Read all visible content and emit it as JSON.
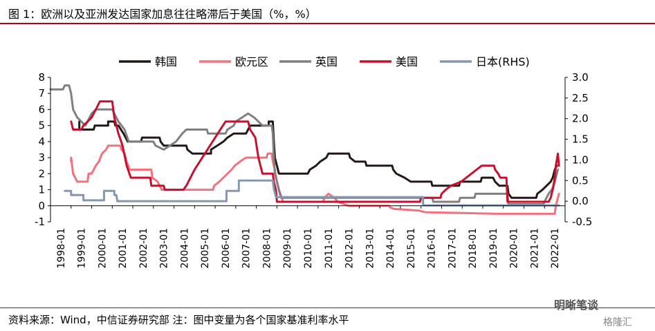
{
  "figure": {
    "title": "图 1：欧洲以及亚洲发达国家加息往往略滞后于美国（%，%）",
    "source": "资料来源：Wind，中信证券研究部    注：图中变量为各个国家基准利率水平",
    "watermark": "明晰笔谈",
    "watermark2": "格隆汇"
  },
  "chart_data": {
    "type": "line",
    "x_tick_labels": [
      "1998-01",
      "1999-01",
      "2000-01",
      "2001-01",
      "2002-01",
      "2003-01",
      "2004-01",
      "2005-01",
      "2006-01",
      "2007-01",
      "2008-01",
      "2009-01",
      "2010-01",
      "2011-01",
      "2012-01",
      "2013-01",
      "2014-01",
      "2015-01",
      "2016-01",
      "2017-01",
      "2018-01",
      "2019-01",
      "2020-01",
      "2021-01",
      "2022-01"
    ],
    "x_range": [
      1998.0,
      2023.0
    ],
    "y_left": {
      "range": [
        -1,
        8
      ],
      "ticks": [
        "-1",
        "0",
        "1",
        "2",
        "3",
        "4",
        "5",
        "6",
        "7",
        "8"
      ]
    },
    "y_right": {
      "range": [
        -0.5,
        3.0
      ],
      "ticks": [
        "-0.5",
        "0.0",
        "0.5",
        "1.0",
        "1.5",
        "2.0",
        "2.5",
        "3.0"
      ]
    },
    "legend_position": "top",
    "series": [
      {
        "name": "韩国",
        "color": "#231815",
        "axis": "left",
        "points": [
          [
            1999.4,
            5.25
          ],
          [
            1999.4,
            4.75
          ],
          [
            2000.1,
            4.75
          ],
          [
            2000.15,
            5.0
          ],
          [
            2000.8,
            5.0
          ],
          [
            2000.8,
            5.25
          ],
          [
            2001.1,
            5.25
          ],
          [
            2001.15,
            5.0
          ],
          [
            2001.3,
            5.0
          ],
          [
            2001.55,
            4.5
          ],
          [
            2001.75,
            4.0
          ],
          [
            2002.4,
            4.0
          ],
          [
            2002.45,
            4.25
          ],
          [
            2003.3,
            4.25
          ],
          [
            2003.35,
            4.0
          ],
          [
            2003.5,
            3.75
          ],
          [
            2004.6,
            3.75
          ],
          [
            2004.65,
            3.5
          ],
          [
            2004.9,
            3.25
          ],
          [
            2005.8,
            3.25
          ],
          [
            2005.8,
            3.5
          ],
          [
            2006.1,
            3.75
          ],
          [
            2006.4,
            4.0
          ],
          [
            2006.6,
            4.25
          ],
          [
            2006.9,
            4.5
          ],
          [
            2007.5,
            4.5
          ],
          [
            2007.6,
            4.75
          ],
          [
            2007.7,
            5.0
          ],
          [
            2008.6,
            5.0
          ],
          [
            2008.6,
            5.25
          ],
          [
            2008.8,
            5.25
          ],
          [
            2008.85,
            4.0
          ],
          [
            2008.9,
            3.0
          ],
          [
            2009.0,
            2.5
          ],
          [
            2009.1,
            2.0
          ],
          [
            2010.5,
            2.0
          ],
          [
            2010.6,
            2.25
          ],
          [
            2010.9,
            2.5
          ],
          [
            2011.1,
            2.75
          ],
          [
            2011.4,
            3.0
          ],
          [
            2011.5,
            3.25
          ],
          [
            2012.5,
            3.25
          ],
          [
            2012.55,
            3.0
          ],
          [
            2012.8,
            2.75
          ],
          [
            2013.3,
            2.75
          ],
          [
            2013.35,
            2.5
          ],
          [
            2014.6,
            2.5
          ],
          [
            2014.65,
            2.25
          ],
          [
            2014.8,
            2.0
          ],
          [
            2015.2,
            1.75
          ],
          [
            2015.5,
            1.5
          ],
          [
            2016.5,
            1.5
          ],
          [
            2016.55,
            1.25
          ],
          [
            2017.85,
            1.25
          ],
          [
            2017.9,
            1.5
          ],
          [
            2018.9,
            1.5
          ],
          [
            2018.95,
            1.75
          ],
          [
            2019.5,
            1.75
          ],
          [
            2019.6,
            1.5
          ],
          [
            2019.8,
            1.25
          ],
          [
            2020.2,
            1.25
          ],
          [
            2020.25,
            0.75
          ],
          [
            2020.4,
            0.5
          ],
          [
            2021.6,
            0.5
          ],
          [
            2021.65,
            0.75
          ],
          [
            2021.9,
            1.0
          ],
          [
            2022.1,
            1.25
          ],
          [
            2022.3,
            1.5
          ],
          [
            2022.4,
            1.75
          ],
          [
            2022.5,
            2.25
          ],
          [
            2022.6,
            2.5
          ]
        ]
      },
      {
        "name": "欧元区",
        "color": "#f3707c",
        "axis": "left",
        "points": [
          [
            1999.0,
            2.75
          ],
          [
            1999.0,
            3.0
          ],
          [
            1999.1,
            2.0
          ],
          [
            1999.3,
            1.5
          ],
          [
            1999.8,
            1.5
          ],
          [
            1999.85,
            2.0
          ],
          [
            2000.0,
            2.0
          ],
          [
            2000.1,
            2.25
          ],
          [
            2000.2,
            2.5
          ],
          [
            2000.35,
            2.75
          ],
          [
            2000.5,
            3.25
          ],
          [
            2000.7,
            3.5
          ],
          [
            2000.8,
            3.75
          ],
          [
            2001.4,
            3.75
          ],
          [
            2001.45,
            3.5
          ],
          [
            2001.6,
            3.25
          ],
          [
            2001.7,
            2.75
          ],
          [
            2001.85,
            2.25
          ],
          [
            2002.9,
            2.25
          ],
          [
            2002.95,
            1.75
          ],
          [
            2003.2,
            1.5
          ],
          [
            2003.4,
            1.0
          ],
          [
            2005.9,
            1.0
          ],
          [
            2005.95,
            1.25
          ],
          [
            2006.2,
            1.5
          ],
          [
            2006.4,
            1.75
          ],
          [
            2006.6,
            2.0
          ],
          [
            2006.8,
            2.25
          ],
          [
            2006.95,
            2.5
          ],
          [
            2007.2,
            2.75
          ],
          [
            2007.5,
            3.0
          ],
          [
            2008.5,
            3.0
          ],
          [
            2008.55,
            3.25
          ],
          [
            2008.75,
            3.25
          ],
          [
            2008.8,
            2.75
          ],
          [
            2008.9,
            2.25
          ],
          [
            2009.0,
            1.5
          ],
          [
            2009.1,
            1.0
          ],
          [
            2009.3,
            0.25
          ],
          [
            2011.25,
            0.25
          ],
          [
            2011.3,
            0.5
          ],
          [
            2011.5,
            0.75
          ],
          [
            2011.8,
            0.5
          ],
          [
            2011.95,
            0.25
          ],
          [
            2012.5,
            0.0
          ],
          [
            2014.45,
            0.0
          ],
          [
            2014.5,
            -0.1
          ],
          [
            2014.7,
            -0.2
          ],
          [
            2015.9,
            -0.3
          ],
          [
            2016.2,
            -0.4
          ],
          [
            2019.7,
            -0.5
          ],
          [
            2022.5,
            -0.5
          ],
          [
            2022.55,
            0.0
          ],
          [
            2022.7,
            0.75
          ]
        ]
      },
      {
        "name": "英国",
        "color": "#7f7f7f",
        "axis": "left",
        "points": [
          [
            1998.0,
            7.25
          ],
          [
            1998.6,
            7.25
          ],
          [
            1998.7,
            7.5
          ],
          [
            1998.9,
            7.5
          ],
          [
            1999.0,
            7.0
          ],
          [
            1999.1,
            6.0
          ],
          [
            1999.3,
            5.5
          ],
          [
            1999.5,
            5.25
          ],
          [
            1999.7,
            5.0
          ],
          [
            1999.8,
            5.25
          ],
          [
            2000.0,
            5.75
          ],
          [
            2000.2,
            6.0
          ],
          [
            2001.0,
            6.0
          ],
          [
            2001.1,
            5.75
          ],
          [
            2001.3,
            5.25
          ],
          [
            2001.6,
            4.75
          ],
          [
            2001.8,
            4.0
          ],
          [
            2003.0,
            4.0
          ],
          [
            2003.1,
            3.75
          ],
          [
            2003.5,
            3.5
          ],
          [
            2003.8,
            3.75
          ],
          [
            2004.1,
            4.0
          ],
          [
            2004.4,
            4.5
          ],
          [
            2004.6,
            4.75
          ],
          [
            2005.6,
            4.75
          ],
          [
            2005.65,
            4.5
          ],
          [
            2006.5,
            4.5
          ],
          [
            2006.6,
            4.75
          ],
          [
            2006.9,
            5.0
          ],
          [
            2007.0,
            5.25
          ],
          [
            2007.3,
            5.5
          ],
          [
            2007.6,
            5.75
          ],
          [
            2007.9,
            5.5
          ],
          [
            2008.1,
            5.25
          ],
          [
            2008.3,
            5.0
          ],
          [
            2008.75,
            5.0
          ],
          [
            2008.8,
            4.5
          ],
          [
            2008.85,
            3.0
          ],
          [
            2008.9,
            2.0
          ],
          [
            2009.0,
            1.5
          ],
          [
            2009.1,
            1.0
          ],
          [
            2009.2,
            0.5
          ],
          [
            2016.55,
            0.5
          ],
          [
            2016.6,
            0.25
          ],
          [
            2017.85,
            0.25
          ],
          [
            2017.9,
            0.5
          ],
          [
            2018.6,
            0.5
          ],
          [
            2018.65,
            0.75
          ],
          [
            2020.2,
            0.75
          ],
          [
            2020.25,
            0.1
          ],
          [
            2021.95,
            0.1
          ],
          [
            2022.0,
            0.25
          ],
          [
            2022.1,
            0.5
          ],
          [
            2022.2,
            0.75
          ],
          [
            2022.35,
            1.0
          ],
          [
            2022.45,
            1.25
          ],
          [
            2022.55,
            1.75
          ],
          [
            2022.65,
            2.25
          ]
        ]
      },
      {
        "name": "美国",
        "color": "#c8102e",
        "axis": "left",
        "points": [
          [
            1999.0,
            5.25
          ],
          [
            1999.1,
            4.75
          ],
          [
            1999.5,
            4.75
          ],
          [
            1999.6,
            5.0
          ],
          [
            1999.8,
            5.25
          ],
          [
            2000.0,
            5.5
          ],
          [
            2000.2,
            6.0
          ],
          [
            2000.4,
            6.5
          ],
          [
            2001.0,
            6.5
          ],
          [
            2001.1,
            5.5
          ],
          [
            2001.3,
            4.5
          ],
          [
            2001.5,
            3.75
          ],
          [
            2001.7,
            2.5
          ],
          [
            2001.9,
            1.75
          ],
          [
            2002.85,
            1.75
          ],
          [
            2002.9,
            1.25
          ],
          [
            2003.5,
            1.25
          ],
          [
            2003.55,
            1.0
          ],
          [
            2004.45,
            1.0
          ],
          [
            2004.6,
            1.25
          ],
          [
            2005.0,
            2.25
          ],
          [
            2005.5,
            3.25
          ],
          [
            2006.0,
            4.25
          ],
          [
            2006.5,
            5.25
          ],
          [
            2007.6,
            5.25
          ],
          [
            2007.7,
            4.75
          ],
          [
            2007.95,
            4.25
          ],
          [
            2008.1,
            3.0
          ],
          [
            2008.3,
            2.0
          ],
          [
            2008.8,
            2.0
          ],
          [
            2008.85,
            1.5
          ],
          [
            2008.95,
            1.0
          ],
          [
            2009.0,
            0.25
          ],
          [
            2015.95,
            0.25
          ],
          [
            2016.0,
            0.5
          ],
          [
            2016.95,
            0.5
          ],
          [
            2017.0,
            0.75
          ],
          [
            2017.2,
            1.0
          ],
          [
            2017.45,
            1.25
          ],
          [
            2017.95,
            1.5
          ],
          [
            2018.2,
            1.75
          ],
          [
            2018.45,
            2.0
          ],
          [
            2018.7,
            2.25
          ],
          [
            2018.95,
            2.5
          ],
          [
            2019.55,
            2.5
          ],
          [
            2019.6,
            2.25
          ],
          [
            2019.75,
            2.0
          ],
          [
            2019.85,
            1.75
          ],
          [
            2020.15,
            1.75
          ],
          [
            2020.2,
            0.25
          ],
          [
            2022.2,
            0.25
          ],
          [
            2022.3,
            0.5
          ],
          [
            2022.4,
            1.0
          ],
          [
            2022.5,
            1.75
          ],
          [
            2022.55,
            2.5
          ],
          [
            2022.65,
            3.25
          ],
          [
            2022.7,
            2.5
          ]
        ]
      },
      {
        "name": "日本(RHS)",
        "color": "#8497b0",
        "axis": "right",
        "points": [
          [
            1998.7,
            0.25
          ],
          [
            1999.0,
            0.25
          ],
          [
            1999.0,
            0.15
          ],
          [
            1999.6,
            0.15
          ],
          [
            1999.6,
            0.02
          ],
          [
            2000.6,
            0.02
          ],
          [
            2000.6,
            0.25
          ],
          [
            2001.1,
            0.25
          ],
          [
            2001.1,
            0.15
          ],
          [
            2001.2,
            0.15
          ],
          [
            2001.25,
            0.0
          ],
          [
            2006.55,
            0.0
          ],
          [
            2006.55,
            0.25
          ],
          [
            2007.15,
            0.25
          ],
          [
            2007.15,
            0.5
          ],
          [
            2008.8,
            0.5
          ],
          [
            2008.85,
            0.3
          ],
          [
            2008.95,
            0.1
          ],
          [
            2016.1,
            0.1
          ],
          [
            2016.1,
            -0.1
          ],
          [
            2022.7,
            -0.1
          ]
        ]
      }
    ]
  }
}
